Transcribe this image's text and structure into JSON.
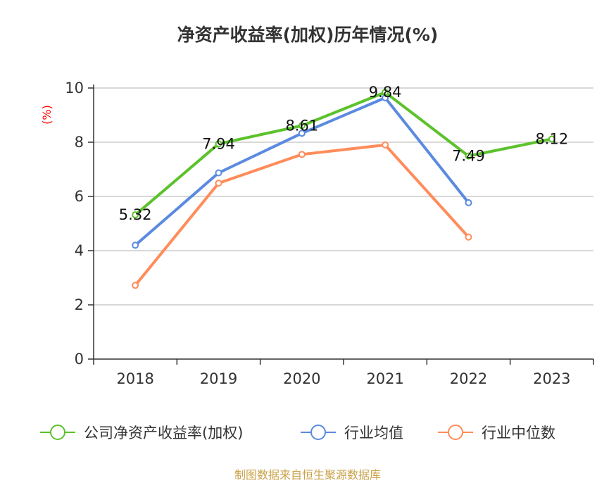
{
  "chart_data": {
    "type": "line",
    "title": "净资产收益率(加权)历年情况(%)",
    "xlabel": "",
    "ylabel": "(%)",
    "categories": [
      "2018",
      "2019",
      "2020",
      "2021",
      "2022",
      "2023"
    ],
    "ylim": [
      0,
      10
    ],
    "yticks": [
      0,
      2,
      4,
      6,
      8,
      10
    ],
    "grid": true,
    "legend_position": "bottom",
    "series": [
      {
        "name": "公司净资产收益率(加权)",
        "color": "#5cc22c",
        "values": [
          5.32,
          7.94,
          8.61,
          9.84,
          7.49,
          8.12
        ],
        "labels": [
          "5.32",
          "7.94",
          "8.61",
          "9.84",
          "7.49",
          "8.12"
        ]
      },
      {
        "name": "行业均值",
        "color": "#5b8ae0",
        "values": [
          4.2,
          6.87,
          8.33,
          9.64,
          5.77,
          null
        ]
      },
      {
        "name": "行业中位数",
        "color": "#ff8c5a",
        "values": [
          2.72,
          6.49,
          7.55,
          7.9,
          4.5,
          null
        ]
      }
    ],
    "source": "制图数据来自恒生聚源数据库"
  }
}
